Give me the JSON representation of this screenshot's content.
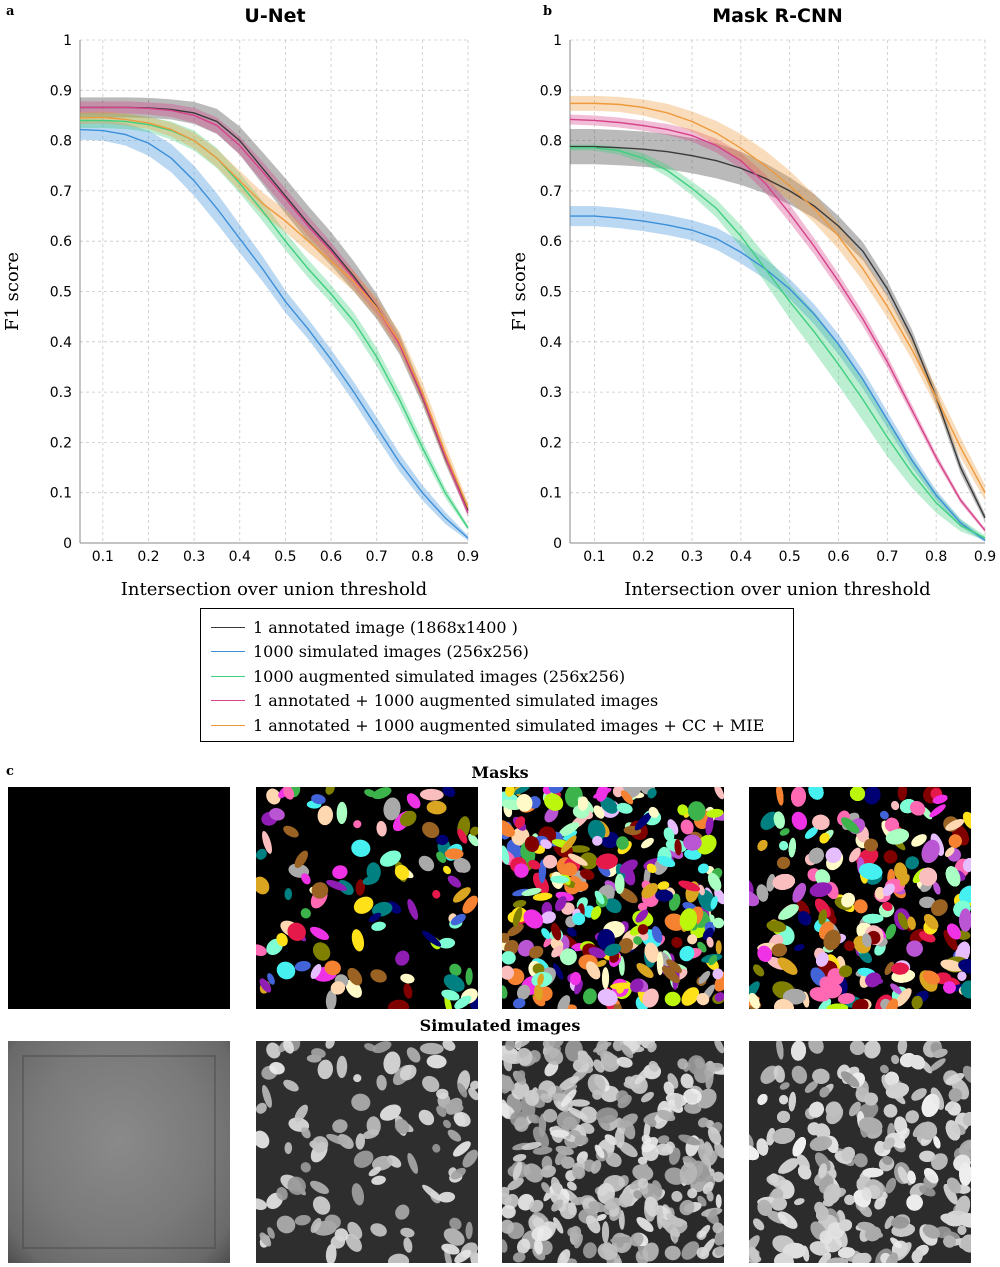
{
  "panel_labels": {
    "a": "a",
    "b": "b",
    "c": "c"
  },
  "chart_data": [
    {
      "type": "line",
      "title": "U-Net",
      "xlabel": "Intersection over union threshold",
      "ylabel": "F1 score",
      "xlim": [
        0.05,
        0.9
      ],
      "ylim": [
        0,
        1
      ],
      "xticks": [
        "0.1",
        "0.2",
        "0.3",
        "0.4",
        "0.5",
        "0.6",
        "0.7",
        "0.8",
        "0.9"
      ],
      "yticks": [
        "0",
        "0.1",
        "0.2",
        "0.3",
        "0.4",
        "0.5",
        "0.6",
        "0.7",
        "0.8",
        "0.9",
        "1"
      ],
      "grid": true,
      "x": [
        0.05,
        0.1,
        0.15,
        0.2,
        0.25,
        0.3,
        0.35,
        0.4,
        0.45,
        0.5,
        0.55,
        0.6,
        0.65,
        0.7,
        0.75,
        0.8,
        0.85,
        0.9
      ],
      "series": [
        {
          "name": "1 annotated image (1868x1400 )",
          "color": "#3a3a3a",
          "values": [
            0.866,
            0.866,
            0.866,
            0.865,
            0.862,
            0.855,
            0.838,
            0.8,
            0.745,
            0.69,
            0.635,
            0.585,
            0.53,
            0.47,
            0.395,
            0.29,
            0.17,
            0.065
          ],
          "band": [
            0.02,
            0.02,
            0.02,
            0.02,
            0.02,
            0.022,
            0.025,
            0.028,
            0.032,
            0.035,
            0.035,
            0.033,
            0.03,
            0.025,
            0.02,
            0.015,
            0.012,
            0.01
          ]
        },
        {
          "name": "1000 simulated images (256x256)",
          "color": "#3b8fd9",
          "values": [
            0.822,
            0.82,
            0.812,
            0.795,
            0.765,
            0.72,
            0.665,
            0.605,
            0.545,
            0.48,
            0.425,
            0.365,
            0.3,
            0.23,
            0.16,
            0.1,
            0.05,
            0.01
          ],
          "band": [
            0.02,
            0.02,
            0.022,
            0.025,
            0.028,
            0.03,
            0.03,
            0.028,
            0.025,
            0.022,
            0.02,
            0.02,
            0.02,
            0.02,
            0.018,
            0.015,
            0.012,
            0.005
          ]
        },
        {
          "name": "1000 augmented simulated images (256x256)",
          "color": "#3fcf7f",
          "values": [
            0.84,
            0.84,
            0.838,
            0.832,
            0.82,
            0.8,
            0.765,
            0.715,
            0.66,
            0.6,
            0.545,
            0.495,
            0.44,
            0.37,
            0.285,
            0.19,
            0.1,
            0.03
          ],
          "band": [
            0.015,
            0.015,
            0.015,
            0.015,
            0.018,
            0.02,
            0.02,
            0.02,
            0.02,
            0.018,
            0.018,
            0.018,
            0.018,
            0.018,
            0.016,
            0.014,
            0.01,
            0.005
          ]
        },
        {
          "name": "1 annotated + 1000 augmented simulated images",
          "color": "#d6428a",
          "values": [
            0.866,
            0.866,
            0.866,
            0.864,
            0.86,
            0.85,
            0.83,
            0.79,
            0.738,
            0.685,
            0.63,
            0.58,
            0.525,
            0.468,
            0.395,
            0.292,
            0.172,
            0.06
          ],
          "band": [
            0.012,
            0.012,
            0.012,
            0.012,
            0.013,
            0.015,
            0.016,
            0.018,
            0.02,
            0.02,
            0.02,
            0.018,
            0.016,
            0.014,
            0.012,
            0.01,
            0.01,
            0.008
          ]
        },
        {
          "name": "1 annotated + 1000 augmented simulated images + CC + MIE",
          "color": "#ee9a3d",
          "values": [
            0.845,
            0.846,
            0.842,
            0.835,
            0.822,
            0.8,
            0.765,
            0.72,
            0.675,
            0.64,
            0.6,
            0.56,
            0.52,
            0.468,
            0.4,
            0.3,
            0.18,
            0.07
          ],
          "band": [
            0.012,
            0.012,
            0.012,
            0.012,
            0.014,
            0.016,
            0.018,
            0.02,
            0.022,
            0.022,
            0.022,
            0.02,
            0.02,
            0.02,
            0.02,
            0.02,
            0.018,
            0.01
          ]
        }
      ]
    },
    {
      "type": "line",
      "title": "Mask R-CNN",
      "xlabel": "Intersection over union threshold",
      "ylabel": "F1 score",
      "xlim": [
        0.05,
        0.9
      ],
      "ylim": [
        0,
        1
      ],
      "xticks": [
        "0.1",
        "0.2",
        "0.3",
        "0.4",
        "0.5",
        "0.6",
        "0.7",
        "0.8",
        "0.9"
      ],
      "yticks": [
        "0",
        "0.1",
        "0.2",
        "0.3",
        "0.4",
        "0.5",
        "0.6",
        "0.7",
        "0.8",
        "0.9",
        "1"
      ],
      "grid": true,
      "x": [
        0.05,
        0.1,
        0.15,
        0.2,
        0.25,
        0.3,
        0.35,
        0.4,
        0.45,
        0.5,
        0.55,
        0.6,
        0.65,
        0.7,
        0.75,
        0.8,
        0.85,
        0.9
      ],
      "series": [
        {
          "name": "1 annotated image (1868x1400 )",
          "color": "#3a3a3a",
          "values": [
            0.788,
            0.788,
            0.786,
            0.783,
            0.778,
            0.77,
            0.76,
            0.745,
            0.725,
            0.7,
            0.67,
            0.63,
            0.58,
            0.505,
            0.41,
            0.29,
            0.15,
            0.05
          ],
          "band": [
            0.035,
            0.035,
            0.035,
            0.035,
            0.035,
            0.035,
            0.035,
            0.033,
            0.03,
            0.027,
            0.024,
            0.02,
            0.018,
            0.016,
            0.015,
            0.014,
            0.012,
            0.008
          ]
        },
        {
          "name": "1000 simulated images (256x256)",
          "color": "#3b8fd9",
          "values": [
            0.65,
            0.65,
            0.646,
            0.64,
            0.632,
            0.622,
            0.605,
            0.578,
            0.545,
            0.505,
            0.455,
            0.395,
            0.325,
            0.245,
            0.165,
            0.095,
            0.04,
            0.005
          ],
          "band": [
            0.02,
            0.02,
            0.02,
            0.02,
            0.02,
            0.02,
            0.022,
            0.022,
            0.02,
            0.02,
            0.02,
            0.02,
            0.018,
            0.016,
            0.014,
            0.01,
            0.008,
            0.003
          ]
        },
        {
          "name": "1000 augmented simulated images (256x256)",
          "color": "#3fcf7f",
          "values": [
            0.786,
            0.786,
            0.78,
            0.765,
            0.74,
            0.705,
            0.665,
            0.61,
            0.545,
            0.48,
            0.42,
            0.355,
            0.285,
            0.21,
            0.14,
            0.08,
            0.035,
            0.01
          ],
          "band": [
            0.006,
            0.006,
            0.008,
            0.01,
            0.012,
            0.014,
            0.018,
            0.022,
            0.028,
            0.034,
            0.04,
            0.042,
            0.042,
            0.038,
            0.03,
            0.02,
            0.012,
            0.005
          ]
        },
        {
          "name": "1 annotated + 1000 augmented simulated images",
          "color": "#d6428a",
          "values": [
            0.842,
            0.84,
            0.836,
            0.83,
            0.822,
            0.81,
            0.79,
            0.76,
            0.715,
            0.655,
            0.59,
            0.52,
            0.445,
            0.36,
            0.265,
            0.17,
            0.085,
            0.025
          ],
          "band": [
            0.01,
            0.01,
            0.01,
            0.01,
            0.011,
            0.012,
            0.014,
            0.016,
            0.018,
            0.018,
            0.016,
            0.015,
            0.014,
            0.012,
            0.01,
            0.008,
            0.006,
            0.004
          ]
        },
        {
          "name": "1 annotated + 1000 augmented simulated images + CC + MIE",
          "color": "#ee9a3d",
          "values": [
            0.874,
            0.874,
            0.872,
            0.866,
            0.855,
            0.838,
            0.815,
            0.785,
            0.75,
            0.71,
            0.665,
            0.61,
            0.545,
            0.47,
            0.385,
            0.29,
            0.19,
            0.1
          ],
          "band": [
            0.015,
            0.015,
            0.015,
            0.016,
            0.018,
            0.02,
            0.024,
            0.028,
            0.03,
            0.03,
            0.028,
            0.026,
            0.024,
            0.022,
            0.02,
            0.02,
            0.02,
            0.015
          ]
        }
      ]
    }
  ],
  "legend": {
    "entries": [
      {
        "label": "1 annotated image (1868x1400 )",
        "color": "#3a3a3a"
      },
      {
        "label": "1000 simulated images (256x256)",
        "color": "#3b8fd9"
      },
      {
        "label": "1000 augmented simulated images (256x256)",
        "color": "#3fcf7f"
      },
      {
        "label": "1 annotated + 1000 augmented simulated images",
        "color": "#d6428a"
      },
      {
        "label": "1 annotated + 1000 augmented simulated images + CC + MIE",
        "color": "#ee9a3d"
      }
    ]
  },
  "panel_c": {
    "masks_label": "Masks",
    "simulated_label": "Simulated images",
    "mask_tiles": [
      "empty",
      "sparse",
      "medium",
      "dense"
    ],
    "image_tiles": [
      "empty",
      "sparse",
      "medium",
      "dense"
    ]
  }
}
